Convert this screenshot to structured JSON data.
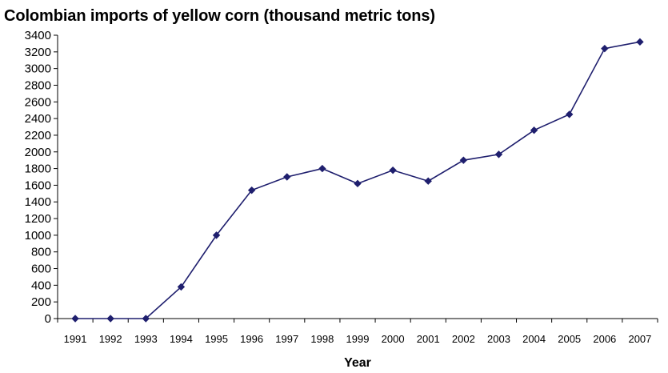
{
  "chart_data": {
    "type": "line",
    "title": "Colombian imports of yellow corn (thousand metric tons)",
    "xlabel": "Year",
    "ylabel": "",
    "ylim": [
      0,
      3400
    ],
    "ytick_step": 200,
    "grid": false,
    "legend": "none",
    "line_color": "#1f1f6e",
    "categories": [
      "1991",
      "1992",
      "1993",
      "1994",
      "1995",
      "1996",
      "1997",
      "1998",
      "1999",
      "2000",
      "2001",
      "2002",
      "2003",
      "2004",
      "2005",
      "2006",
      "2007"
    ],
    "series": [
      {
        "values": [
          0,
          0,
          0,
          380,
          1000,
          1540,
          1700,
          1800,
          1620,
          1780,
          1650,
          1900,
          1970,
          2260,
          2450,
          3240,
          3320
        ]
      }
    ]
  }
}
